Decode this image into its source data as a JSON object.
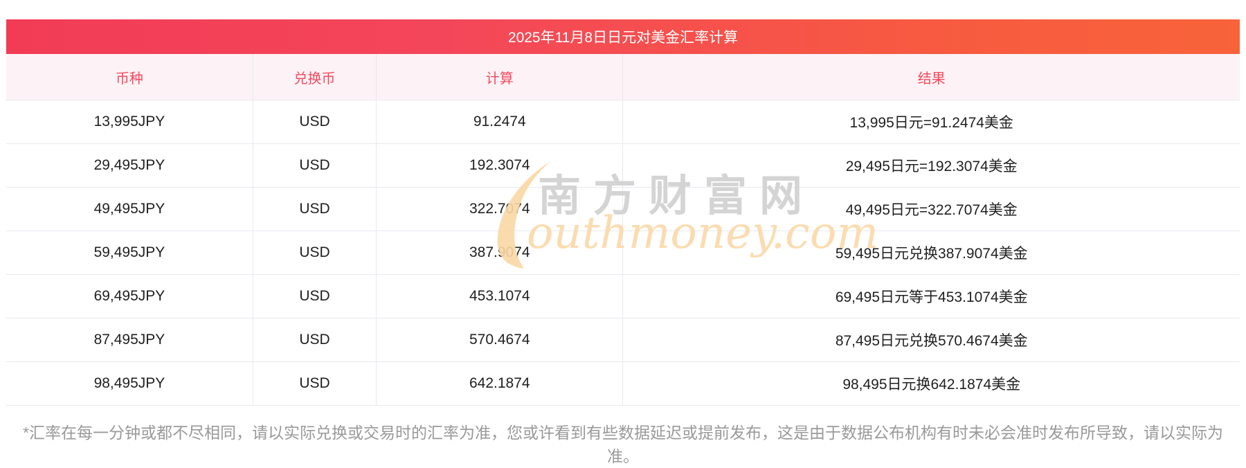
{
  "page": {
    "title": "2025年11月8日日元对美金汇率计算",
    "watermark": {
      "cn_text": "南方财富网",
      "en_text": "outhmoney.com"
    },
    "footnote": "*汇率在每一分钟或都不尽相同，请以实际兑换或交易时的汇率为准，您或许看到有些数据延迟或提前发布，这是由于数据公布机构有时未必会准时发布所导致，请以实际为准。"
  },
  "table": {
    "columns": [
      "币种",
      "兑换币",
      "计算",
      "结果"
    ],
    "column_names": [
      "currency",
      "target-currency",
      "calculation",
      "result"
    ],
    "rows": [
      [
        "13,995JPY",
        "USD",
        "91.2474",
        "13,995日元=91.2474美金"
      ],
      [
        "29,495JPY",
        "USD",
        "192.3074",
        "29,495日元=192.3074美金"
      ],
      [
        "49,495JPY",
        "USD",
        "322.7074",
        "49,495日元=322.7074美金"
      ],
      [
        "59,495JPY",
        "USD",
        "387.9074",
        "59,495日元兑换387.9074美金"
      ],
      [
        "69,495JPY",
        "USD",
        "453.1074",
        "69,495日元等于453.1074美金"
      ],
      [
        "87,495JPY",
        "USD",
        "570.4674",
        "87,495日元兑换570.4674美金"
      ],
      [
        "98,495JPY",
        "USD",
        "642.1874",
        "98,495日元换642.1874美金"
      ]
    ]
  },
  "colors": {
    "titlebar_gradient_start": "#f23c56",
    "titlebar_gradient_end": "#f8633a",
    "header_bg": "#fdf3f6",
    "header_text": "#f4495e",
    "row_border": "#e7e9f0",
    "body_text": "#1f1f1f",
    "footnote_text": "#999999",
    "watermark_gray": "#d4d4d4",
    "watermark_orange": "#fbdcb0"
  }
}
